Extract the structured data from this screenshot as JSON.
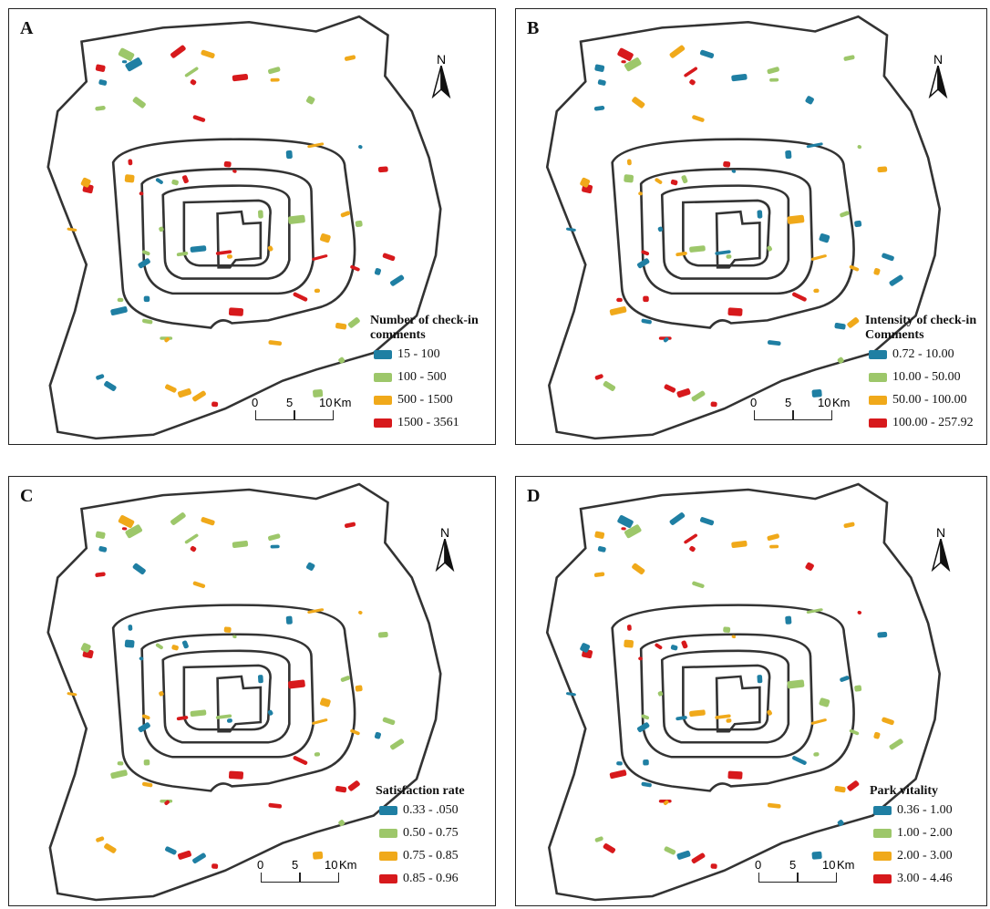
{
  "panels": [
    {
      "label": "A",
      "legend_title_1": "Number of check-in",
      "legend_title_2": "comments",
      "classes": [
        {
          "range": "15 - 100",
          "color": "#1f7fa3"
        },
        {
          "range": "100 - 500",
          "color": "#9dc76a"
        },
        {
          "range": "500 - 1500",
          "color": "#f0a91a"
        },
        {
          "range": "1500 - 3561",
          "color": "#d7191c"
        }
      ]
    },
    {
      "label": "B",
      "legend_title_1": "Intensity of check-in",
      "legend_title_2": "Comments",
      "classes": [
        {
          "range": "0.72 - 10.00",
          "color": "#1f7fa3"
        },
        {
          "range": "10.00 - 50.00",
          "color": "#9dc76a"
        },
        {
          "range": "50.00 - 100.00",
          "color": "#f0a91a"
        },
        {
          "range": "100.00 - 257.92",
          "color": "#d7191c"
        }
      ]
    },
    {
      "label": "C",
      "legend_title_1": "Satisfaction rate",
      "legend_title_2": "",
      "classes": [
        {
          "range": "0.33 - .050",
          "color": "#1f7fa3"
        },
        {
          "range": "0.50 - 0.75",
          "color": "#9dc76a"
        },
        {
          "range": "0.75 - 0.85",
          "color": "#f0a91a"
        },
        {
          "range": "0.85 - 0.96",
          "color": "#d7191c"
        }
      ]
    },
    {
      "label": "D",
      "legend_title_1": "Park vitality",
      "legend_title_2": "",
      "classes": [
        {
          "range": "0.36 - 1.00",
          "color": "#1f7fa3"
        },
        {
          "range": "1.00 - 2.00",
          "color": "#9dc76a"
        },
        {
          "range": "2.00 - 3.00",
          "color": "#f0a91a"
        },
        {
          "range": "3.00 - 4.46",
          "color": "#d7191c"
        }
      ]
    }
  ],
  "north_label": "N",
  "scale": {
    "ticks": [
      "0",
      "5",
      "10"
    ],
    "unit": "Km"
  }
}
